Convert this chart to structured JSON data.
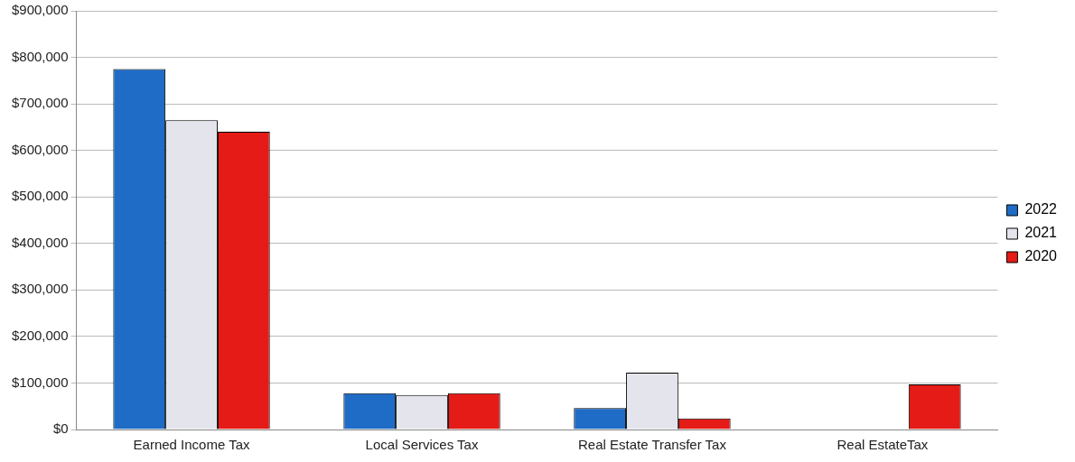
{
  "chart_data": {
    "type": "bar",
    "categories": [
      "Earned Income Tax",
      "Local Services Tax",
      "Real Estate Transfer Tax",
      "Real EstateTax"
    ],
    "series": [
      {
        "name": "2022",
        "color": "#1f6cc6",
        "values": [
          775000,
          78000,
          46000,
          0
        ]
      },
      {
        "name": "2021",
        "color": "#e4e4ec",
        "values": [
          665000,
          74000,
          122000,
          0
        ]
      },
      {
        "name": "2020",
        "color": "#e41b17",
        "values": [
          640000,
          78000,
          24000,
          97000
        ]
      }
    ],
    "ylim": [
      0,
      900000
    ],
    "yticks": [
      {
        "value": 0,
        "label": "$0"
      },
      {
        "value": 100000,
        "label": "$100,000"
      },
      {
        "value": 200000,
        "label": "$200,000"
      },
      {
        "value": 300000,
        "label": "$300,000"
      },
      {
        "value": 400000,
        "label": "$400,000"
      },
      {
        "value": 500000,
        "label": "$500,000"
      },
      {
        "value": 600000,
        "label": "$600,000"
      },
      {
        "value": 700000,
        "label": "$700,000"
      },
      {
        "value": 800000,
        "label": "$800,000"
      },
      {
        "value": 900000,
        "label": "$900,000"
      }
    ],
    "grid": "y",
    "legend": "right"
  }
}
